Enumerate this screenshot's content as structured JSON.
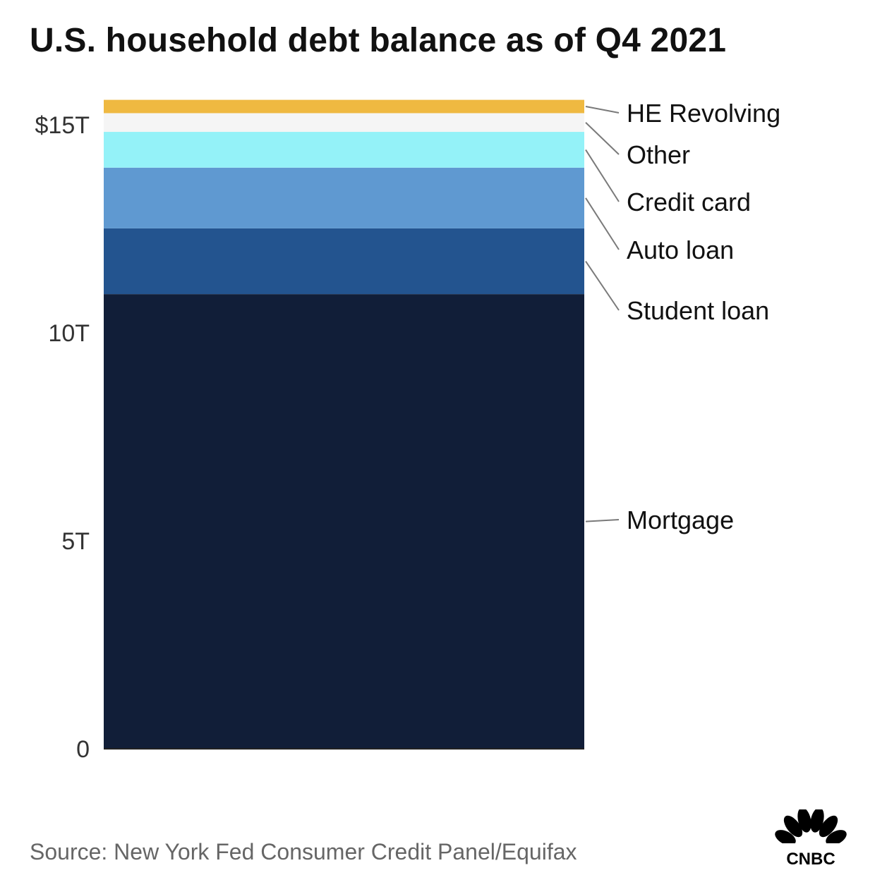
{
  "chart_data": {
    "type": "bar",
    "title": "U.S. household debt balance as of Q4 2021",
    "categories": [
      "Q4 2021"
    ],
    "stacked": true,
    "series": [
      {
        "name": "Mortgage",
        "values": [
          10.93
        ],
        "color": "#111e38"
      },
      {
        "name": "Student loan",
        "values": [
          1.58
        ],
        "color": "#23548f"
      },
      {
        "name": "Auto loan",
        "values": [
          1.46
        ],
        "color": "#5f99d1"
      },
      {
        "name": "Credit card",
        "values": [
          0.86
        ],
        "color": "#94f2f8"
      },
      {
        "name": "Other",
        "values": [
          0.45
        ],
        "color": "#f5f5f5"
      },
      {
        "name": "HE Revolving",
        "values": [
          0.32
        ],
        "color": "#efb941"
      }
    ],
    "ylim": [
      0,
      15.6
    ],
    "yticks": [
      0,
      5,
      10,
      15
    ],
    "ytick_labels": [
      "0",
      "5T",
      "10T",
      "$15T"
    ],
    "xlabel": "",
    "ylabel": "",
    "grid": false,
    "legend": "right, labels leading from each segment"
  },
  "source": "Source: New York Fed Consumer Credit Panel/Equifax",
  "logo": {
    "text": "CNBC",
    "icon": "nbc-peacock-icon"
  }
}
